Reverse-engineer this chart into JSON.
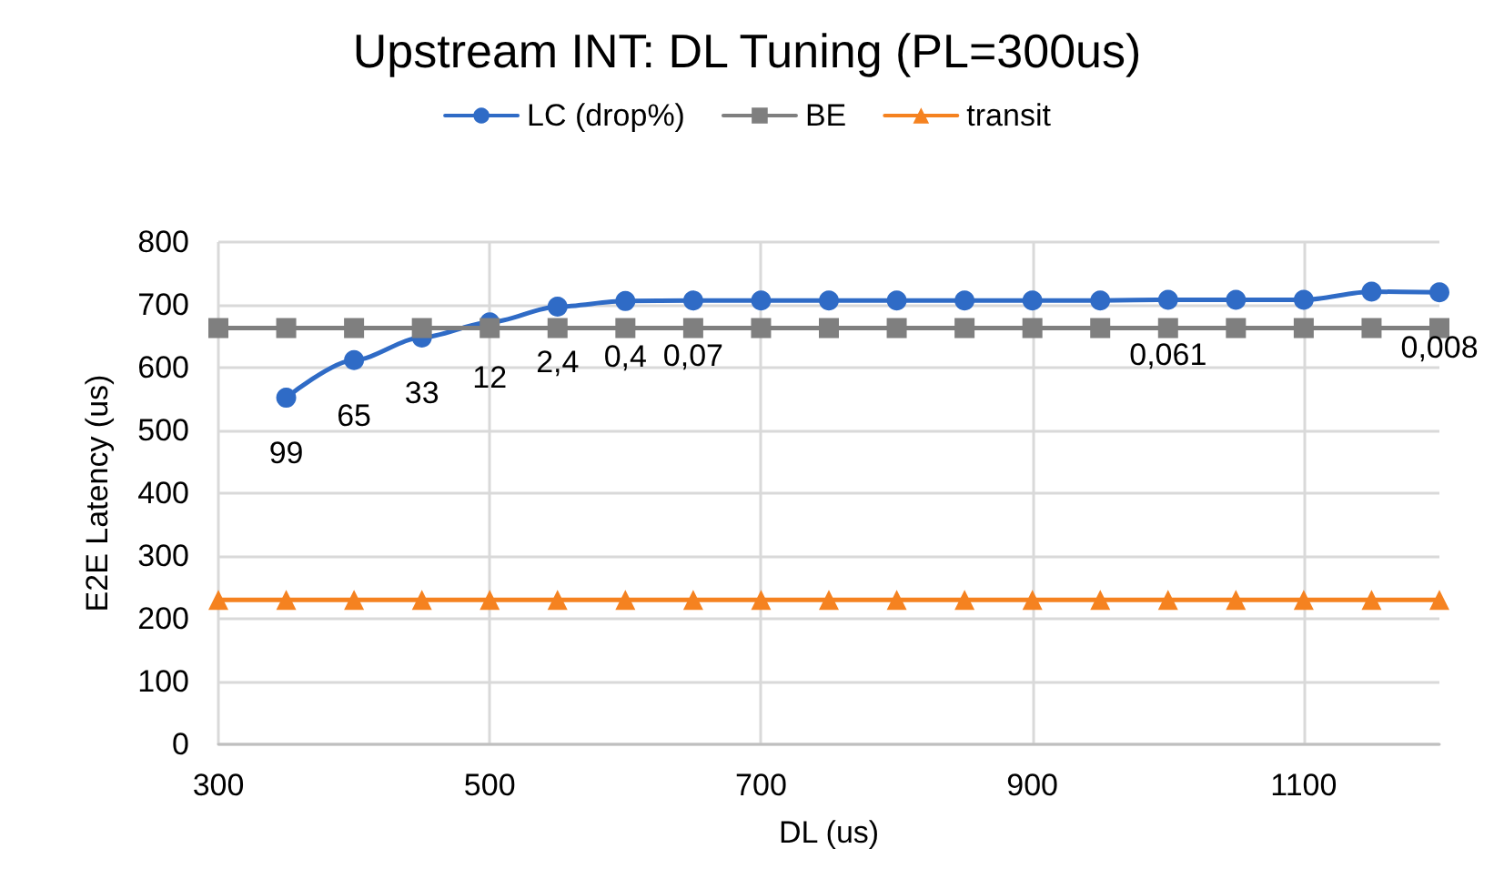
{
  "chart_data": {
    "type": "line",
    "title": "Upstream INT: DL Tuning (PL=300us)",
    "xlabel": "DL (us)",
    "ylabel": "E2E Latency (us)",
    "xlim": [
      300,
      1200
    ],
    "xticks": [
      300,
      500,
      700,
      900,
      1100
    ],
    "ylim": [
      0,
      800
    ],
    "yticks": [
      0,
      100,
      200,
      300,
      400,
      500,
      600,
      700,
      800
    ],
    "grid": true,
    "legend": "top",
    "line_style": "solid",
    "series": [
      {
        "name": "LC (drop%)",
        "color": "#2f6bc6",
        "marker": "circle",
        "x": [
          350,
          400,
          450,
          500,
          550,
          600,
          650,
          700,
          750,
          800,
          850,
          900,
          950,
          1000,
          1050,
          1100,
          1150,
          1200
        ],
        "values": [
          552,
          612,
          648,
          672,
          697,
          706,
          707,
          707,
          707,
          707,
          707,
          707,
          707,
          708,
          708,
          708,
          721,
          720
        ]
      },
      {
        "name": "BE",
        "color": "#7f7f7f",
        "marker": "square",
        "x": [
          300,
          350,
          400,
          450,
          500,
          550,
          600,
          650,
          700,
          750,
          800,
          850,
          900,
          950,
          1000,
          1050,
          1100,
          1150,
          1200
        ],
        "values": [
          663,
          663,
          663,
          663,
          663,
          663,
          663,
          663,
          663,
          663,
          663,
          663,
          663,
          663,
          663,
          663,
          663,
          663,
          663
        ]
      },
      {
        "name": "transit",
        "color": "#f58220",
        "marker": "triangle",
        "x": [
          300,
          350,
          400,
          450,
          500,
          550,
          600,
          650,
          700,
          750,
          800,
          850,
          900,
          950,
          1000,
          1050,
          1100,
          1150,
          1200
        ],
        "values": [
          230,
          230,
          230,
          230,
          230,
          230,
          230,
          230,
          230,
          230,
          230,
          230,
          230,
          230,
          230,
          230,
          230,
          230,
          230
        ]
      }
    ],
    "annotations": [
      {
        "text": "99",
        "x": 350,
        "y": 552
      },
      {
        "text": "65",
        "x": 400,
        "y": 612
      },
      {
        "text": "33",
        "x": 450,
        "y": 648
      },
      {
        "text": "12",
        "x": 500,
        "y": 672
      },
      {
        "text": "2,4",
        "x": 550,
        "y": 697
      },
      {
        "text": "0,4",
        "x": 600,
        "y": 706
      },
      {
        "text": "0,07",
        "x": 650,
        "y": 707
      },
      {
        "text": "0,061",
        "x": 1000,
        "y": 708
      },
      {
        "text": "0,008",
        "x": 1200,
        "y": 720
      }
    ]
  }
}
